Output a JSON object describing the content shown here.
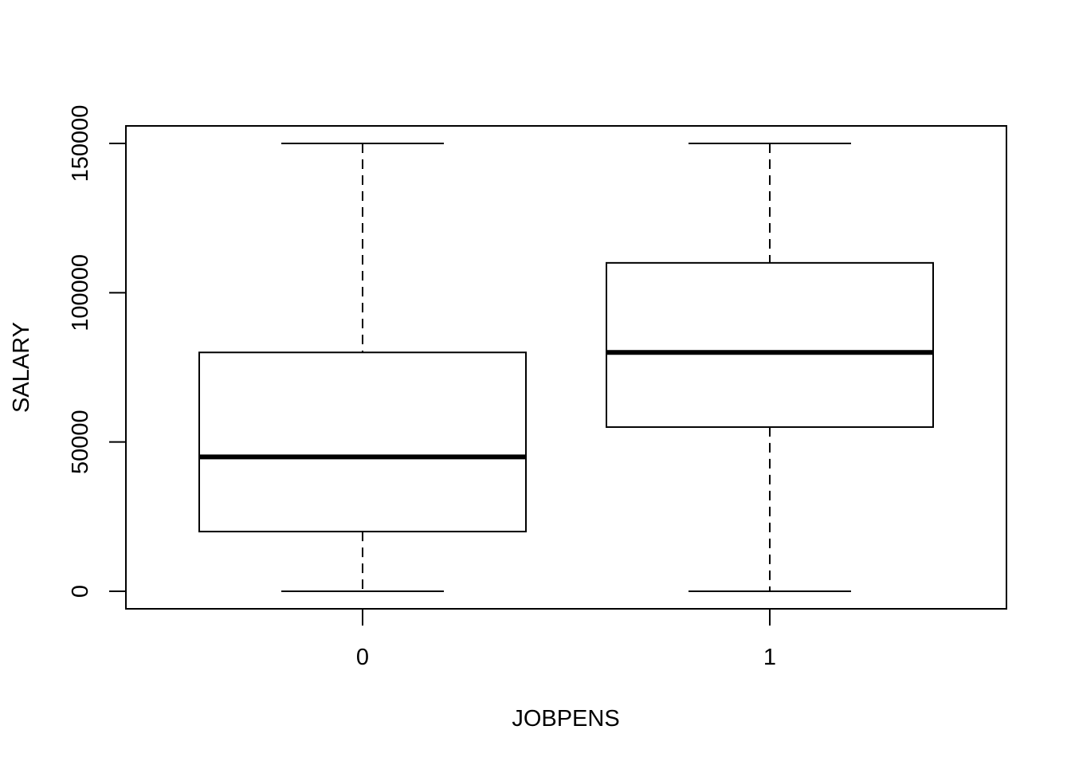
{
  "chart_data": {
    "type": "boxplot",
    "title": "",
    "xlabel": "JOBPENS",
    "ylabel": "SALARY",
    "categories": [
      "0",
      "1"
    ],
    "ylim": [
      -6000,
      156000
    ],
    "yticks": [
      0,
      50000,
      100000,
      150000
    ],
    "ytick_labels": [
      "0",
      "50000",
      "100000",
      "150000"
    ],
    "boxes": [
      {
        "category": "0",
        "min": 0,
        "q1": 20000,
        "median": 45000,
        "q3": 80000,
        "max": 150000
      },
      {
        "category": "1",
        "min": 0,
        "q1": 55000,
        "median": 80000,
        "q3": 110000,
        "max": 150000
      }
    ],
    "grid": false,
    "legend": "none"
  }
}
